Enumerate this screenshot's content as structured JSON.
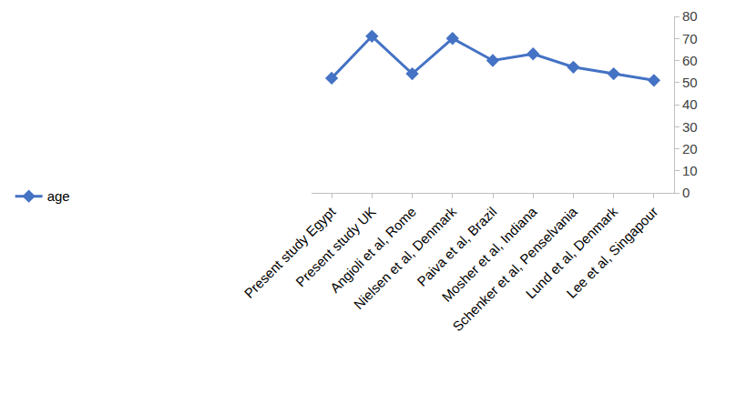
{
  "chart_data": {
    "type": "line",
    "categories": [
      "Present study Egypt",
      "Present study UK",
      "Angioli et al, Rome",
      "Nielsen et al, Denmark",
      "Paiva et al, Brazil",
      "Mosher et al, Indiana",
      "Schenker et al, Penselvania",
      "Lund et al, Denmark",
      "Lee et al, Singapour"
    ],
    "series": [
      {
        "name": "age",
        "color": "#4472c4",
        "marker": "diamond",
        "line_style": "solid",
        "values": [
          52,
          71,
          54,
          70,
          60,
          63,
          57,
          54,
          51
        ]
      }
    ],
    "ylim": [
      0,
      80
    ],
    "yticks": [
      0,
      10,
      20,
      30,
      40,
      50,
      60,
      70,
      80
    ],
    "grid": false,
    "legend": "left"
  }
}
